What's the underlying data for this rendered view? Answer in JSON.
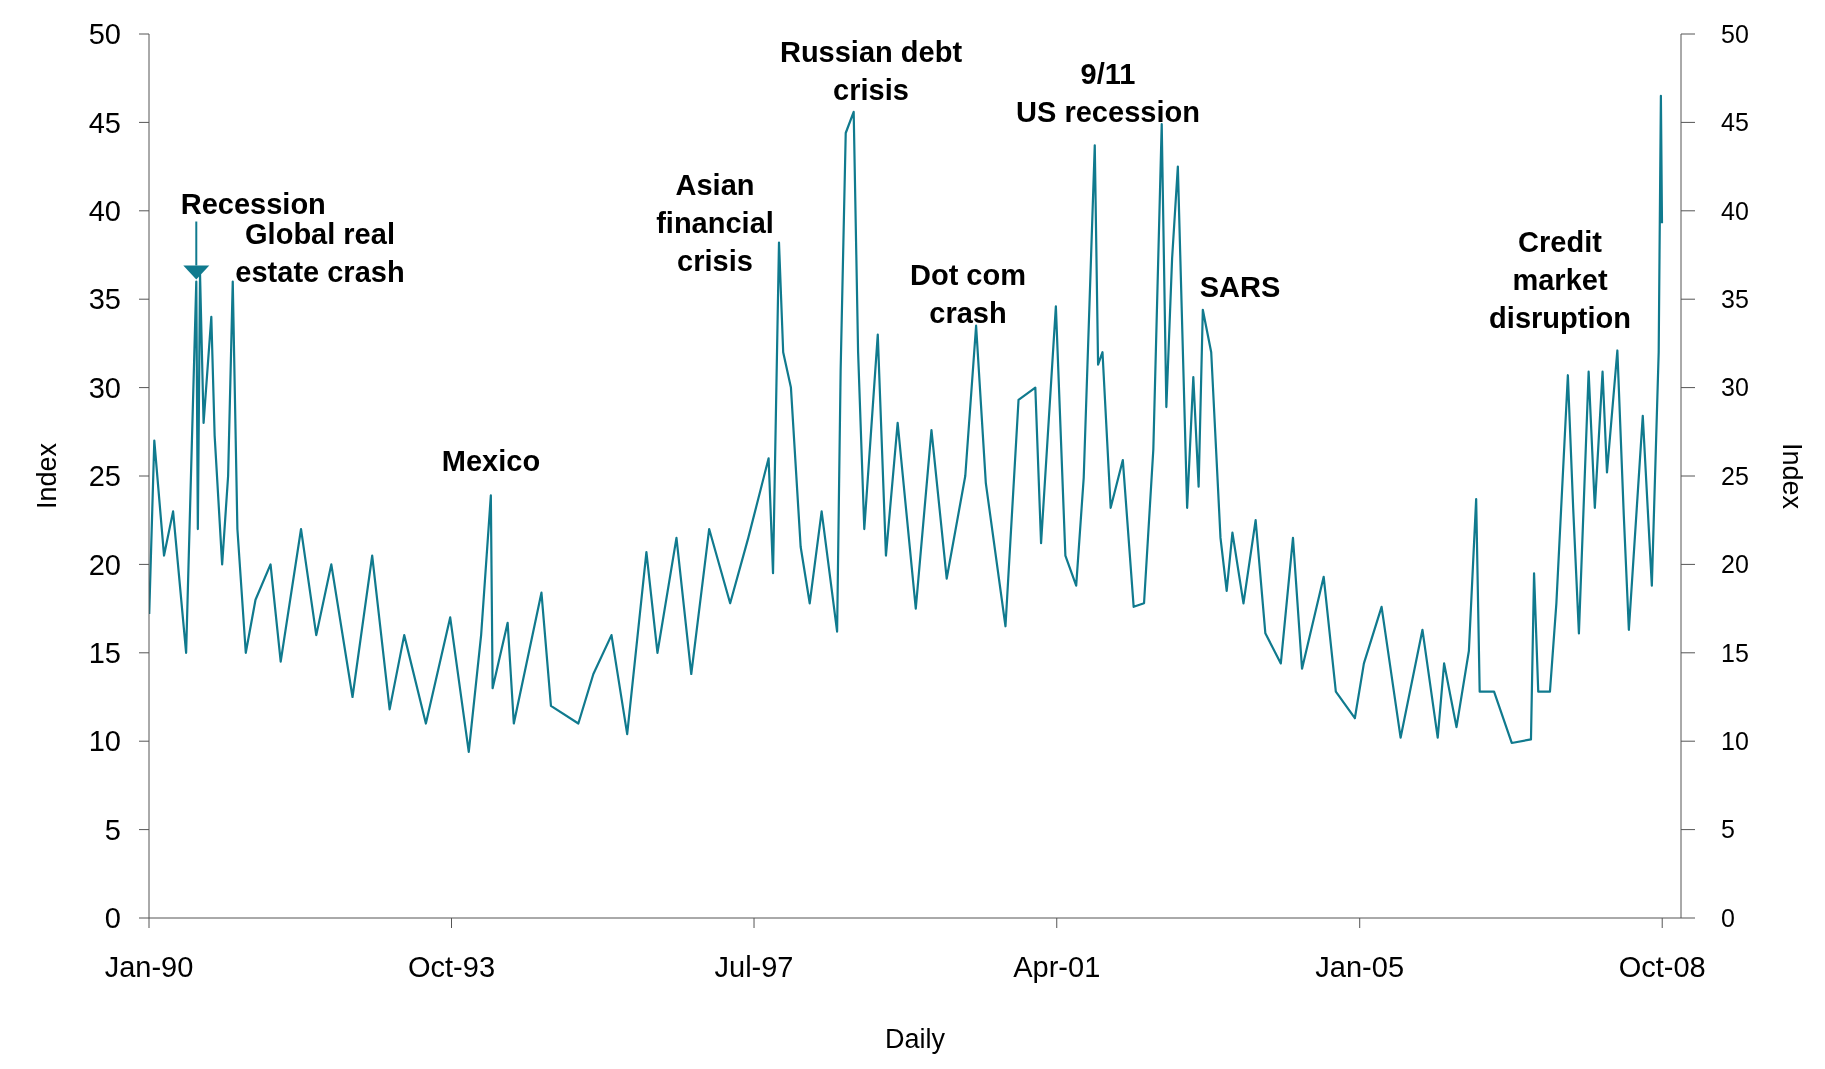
{
  "chart_data": {
    "type": "line",
    "xlabel": "Daily",
    "ylabel": "Index",
    "y2label": "Index",
    "x": [
      "1990-01-02",
      "1990-01-25",
      "1990-03-10",
      "1990-04-20",
      "1990-06-18",
      "1990-08-03",
      "1990-08-10",
      "1990-08-20",
      "1990-09-05",
      "1990-10-10",
      "1990-10-25",
      "1990-11-28",
      "1990-12-25",
      "1991-01-15",
      "1991-02-05",
      "1991-03-15",
      "1991-04-28",
      "1991-07-05",
      "1991-08-20",
      "1991-11-20",
      "1992-01-28",
      "1992-04-05",
      "1992-07-10",
      "1992-10-07",
      "1992-12-25",
      "1993-03-01",
      "1993-06-07",
      "1993-09-25",
      "1993-12-18",
      "1994-02-12",
      "1994-03-28",
      "1994-04-05",
      "1994-06-12",
      "1994-07-10",
      "1994-11-12",
      "1994-12-25",
      "1995-04-28",
      "1995-07-05",
      "1995-09-25",
      "1995-12-05",
      "1996-03-01",
      "1996-04-20",
      "1996-07-15",
      "1996-09-20",
      "1996-12-10",
      "1997-03-15",
      "1997-06-05",
      "1997-09-05",
      "1997-09-25",
      "1997-10-22",
      "1997-11-10",
      "1997-12-15",
      "1998-01-28",
      "1998-03-10",
      "1998-05-03",
      "1998-07-12",
      "1998-07-28",
      "1998-08-20",
      "1998-09-25",
      "1998-10-15",
      "1998-11-12",
      "1999-01-12",
      "1999-02-18",
      "1999-04-12",
      "1999-07-03",
      "1999-09-12",
      "1999-11-20",
      "2000-02-12",
      "2000-04-01",
      "2000-05-15",
      "2000-08-12",
      "2000-10-10",
      "2000-12-25",
      "2001-01-20",
      "2001-03-28",
      "2001-05-10",
      "2001-06-28",
      "2001-08-01",
      "2001-09-20",
      "2001-10-05",
      "2001-10-25",
      "2001-12-01",
      "2002-01-25",
      "2002-03-15",
      "2002-05-01",
      "2002-06-12",
      "2002-07-20",
      "2002-08-10",
      "2002-09-05",
      "2002-10-01",
      "2002-11-12",
      "2002-12-10",
      "2003-01-03",
      "2003-01-22",
      "2003-03-01",
      "2003-04-12",
      "2003-05-10",
      "2003-06-05",
      "2003-07-25",
      "2003-09-18",
      "2003-11-01",
      "2004-01-10",
      "2004-03-05",
      "2004-04-15",
      "2004-07-22",
      "2004-09-15",
      "2004-12-10",
      "2005-01-20",
      "2005-04-10",
      "2005-07-05",
      "2005-10-12",
      "2005-12-20",
      "2006-01-18",
      "2006-03-15",
      "2006-05-10",
      "2006-06-12",
      "2006-06-28",
      "2006-09-01",
      "2006-11-20",
      "2007-02-15",
      "2007-03-01",
      "2007-03-20",
      "2007-05-12",
      "2007-06-10",
      "2007-08-01",
      "2007-08-25",
      "2007-09-20",
      "2007-11-03",
      "2007-12-01",
      "2008-01-05",
      "2008-01-25",
      "2008-03-12",
      "2008-04-10",
      "2008-05-03",
      "2008-07-05",
      "2008-08-15",
      "2008-09-15",
      "2008-09-25",
      "2008-09-30"
    ],
    "series": [
      {
        "color": "#107a8e",
        "values": [
          17.2,
          27,
          20.5,
          23,
          15,
          36,
          22,
          36.4,
          28,
          34,
          27.3,
          20,
          25,
          36,
          22,
          15,
          18,
          20,
          14.5,
          22,
          16,
          20,
          12.5,
          20.5,
          11.8,
          16,
          11,
          17,
          9.4,
          16,
          23.9,
          13,
          16.7,
          11,
          18.4,
          12,
          11,
          13.8,
          16,
          10.4,
          20.7,
          15,
          21.5,
          13.8,
          22,
          17.8,
          21.5,
          26,
          19.5,
          38.2,
          32,
          30,
          21,
          17.8,
          23,
          16.2,
          31,
          44.4,
          45.6,
          32,
          22,
          33,
          20.5,
          28,
          17.5,
          27.6,
          19.2,
          25,
          33.5,
          24.6,
          16.5,
          29.3,
          30,
          21.2,
          34.6,
          20.5,
          18.8,
          24.9,
          43.7,
          31.3,
          32,
          23.2,
          25.9,
          17.6,
          17.8,
          26.5,
          44.9,
          28.9,
          37.3,
          42.5,
          23.2,
          30.6,
          24.4,
          34.4,
          32,
          21.5,
          18.5,
          21.8,
          17.8,
          22.5,
          16.1,
          14.4,
          21.5,
          14.1,
          19.3,
          12.8,
          11.3,
          14.4,
          17.6,
          10.2,
          16.3,
          10.2,
          14.4,
          10.8,
          15.1,
          23.7,
          12.8,
          12.8,
          9.9,
          10.1,
          19.5,
          12.8,
          12.8,
          17.8,
          30.7,
          23.2,
          16.1,
          30.9,
          23.2,
          30.9,
          25.2,
          32.1,
          22.8,
          16.3,
          28.4,
          18.8,
          32,
          46.5,
          39.3
        ]
      }
    ],
    "xlim": [
      "1990-01-01",
      "2008-12-25"
    ],
    "xticks": [
      {
        "value": "1990-01",
        "label": "Jan-90"
      },
      {
        "value": "1993-10",
        "label": "Oct-93"
      },
      {
        "value": "1997-07",
        "label": "Jul-97"
      },
      {
        "value": "2001-04",
        "label": "Apr-01"
      },
      {
        "value": "2005-01",
        "label": "Jan-05"
      },
      {
        "value": "2008-10",
        "label": "Oct-08"
      }
    ],
    "ylim": [
      0,
      50
    ],
    "yticks": [
      0,
      5,
      10,
      15,
      20,
      25,
      30,
      35,
      40,
      45,
      50
    ],
    "y2lim": [
      0,
      50
    ],
    "y2ticks": [
      0,
      5,
      10,
      15,
      20,
      25,
      30,
      35,
      40,
      45,
      50
    ],
    "grid": false,
    "legend": false,
    "marker": "none",
    "line_style": "solid",
    "annotations": [
      {
        "text": "Recession",
        "x": "1990-08-03",
        "y": 36
      },
      "Global real\nestate crash",
      "Mexico",
      "Asian\nfinancial\ncrisis",
      "Russian debt\ncrisis",
      "Dot com\ncrash",
      "9/11\nUS recession",
      "SARS",
      "Credit\nmarket\ndisruption"
    ]
  }
}
